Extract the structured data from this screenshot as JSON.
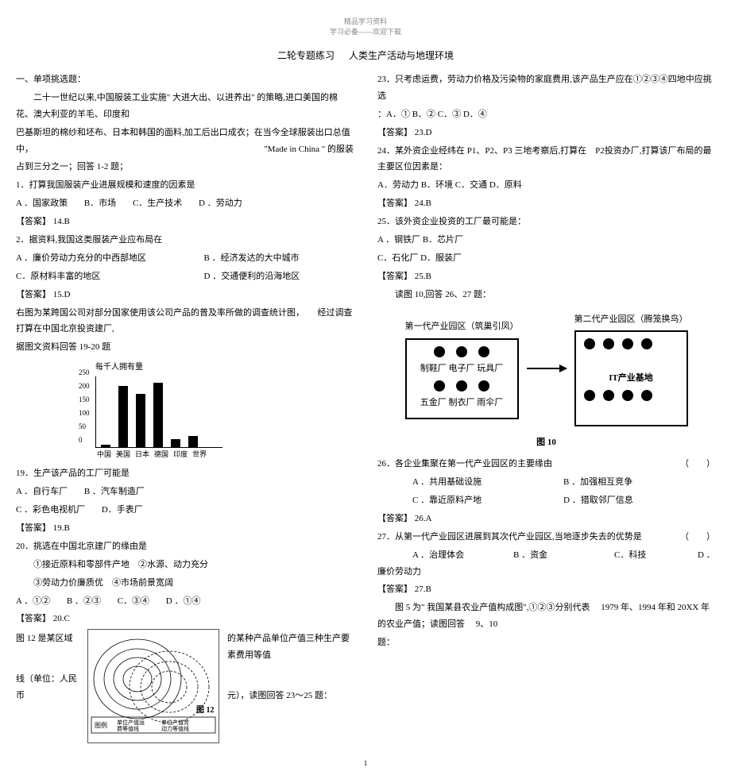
{
  "header": {
    "top": "精品学习资料",
    "sub": "学习必备------欢迎下载"
  },
  "title": {
    "left": "二轮专题练习",
    "right": "人类生产活动与地理环境"
  },
  "left": {
    "section": "一、单项挑选题：",
    "intro1": "二十一世纪以来,中国服装工业实施\" 大进大出、以进养出\" 的策略,进口美国的棉花、澳大利亚的羊毛、印度和",
    "intro2_a": "巴基斯坦的棉纱和坯布、日本和韩国的面料,加工后出口成衣；在当今全球服装出口总值中，",
    "intro2_b": "\"Made in China \" 的服装",
    "intro3": "占到三分之一；回答 1-2 题；",
    "q1": "1．打算我国服装产业进展规模和速度的因素是",
    "q1_opts": {
      "a": "A ．国家政策",
      "b": "B．市场",
      "c": "C．生产技术",
      "d": "D ．劳动力"
    },
    "a1": "【答案】 14.B",
    "q2": "2．据资料,我国这类服装产业应布局在",
    "q2_a": "A ．廉价劳动力充分的中西部地区",
    "q2_b": "B ．经济发达的大中城市",
    "q2_c": "C．原材料丰富的地区",
    "q2_d": "D ．交通便利的沿海地区",
    "a2": "【答案】 15.D",
    "para_a": "右图为某跨国公司对部分国家使用该公司产品的普及率所做的调查统计图，",
    "para_b": "经过调查打算在中国北京投资建厂,",
    "para_c": "据图文资料回答 19-20 题",
    "chart": {
      "ylabel": "每千人拥有量",
      "yticks": [
        "0",
        "50",
        "100",
        "150",
        "200",
        "250"
      ],
      "xlabels": [
        "中国",
        "美国",
        "日本",
        "德国",
        "印度",
        "世界"
      ],
      "bars": [
        10,
        220,
        190,
        230,
        30,
        40
      ],
      "ymax": 250
    },
    "q19": "19．生产该产品的工厂可能是",
    "q19_ab": {
      "a": "A ．自行车厂",
      "b": "B ．汽车制造厂"
    },
    "q19_cd": {
      "c": "C ．彩色电视机厂",
      "d": "D．手表厂"
    },
    "a19": "【答案】 19.B",
    "q20": "20．挑选在中国北京建厂的缘由是",
    "q20_l1": "①接近原料和零部件产地　②水源、动力充分",
    "q20_l2": "③劳动力价廉质优　④市场前景宽阔",
    "q20_opts": {
      "a": "A ．①②",
      "b": "B ．②③",
      "c": "C．③④",
      "d": "D ．①④"
    },
    "a20": "【答案】 20.C",
    "q12_a": "图 12 是某区域",
    "q12_b": "的某种产品单位产值三种生产要素费用等值",
    "q12_c": "线（单位：人民币",
    "q12_d": "元），读图回答 23～25 题：",
    "map_legend": {
      "l1": "图例",
      "l2": "单位产值运\\n费等值线",
      "l3": "单位产值劳\\n动力等值线",
      "cap": "图 12"
    }
  },
  "right": {
    "q23": "23．只考虑运费，劳动力价格及污染物的家庭费用,该产品生产应在①②③④四地中应挑选",
    "q23_opts": "：A．① B．② C．③ D．④",
    "a23": "【答案】 23.D",
    "q24_a": "24．某外资企业经纬在 P1、P2、P3 三地考察后,打算在",
    "q24_b": "P2投资办厂,打算该厂布局的最主要区位因素是：",
    "q24_opts": "A．劳动力 B．环境 C．交通 D．原料",
    "a24": "【答案】 24.B",
    "q25": "25．该外资企业投资的工厂最可能是：",
    "q25_ab": "A ．钢铁厂 B．芯片厂",
    "q25_cd": "C．石化厂 D．服装厂",
    "a25": "【答案】 25.B",
    "fig10_intro": "读图 10,回答 26、27 题：",
    "park1_title": "第一代产业园区（筑巢引凤）",
    "park2_title": "第二代产业园区（腾笼换鸟）",
    "park1_row1": "制鞋厂 电子厂 玩具厂",
    "park1_row2": "五金厂 制衣厂 雨伞厂",
    "park2_label": "IT产业基地",
    "figcap": "图 10",
    "q26": "26．各企业集聚在第一代产业园区的主要缘由",
    "q26_ab": {
      "a": "A ．共用基础设施",
      "b": "B ．加强相互竞争"
    },
    "q26_cd": {
      "c": "C ．靠近原料产地",
      "d": "D ．猎取邻厂信息"
    },
    "a26": "【答案】 26.A",
    "q27": "27．从第一代产业园区进展到其次代产业园区,当地逐步失去的优势是",
    "q27_opts": {
      "a": "A ．治理体会",
      "b": "B ．资金",
      "c": "C．科技",
      "d": "D ．廉价劳动力"
    },
    "a27": "【答案】 27.B",
    "fig5_a": "图 5 为\" 我国某县农业产值构成图\",①②③分别代表",
    "fig5_b": "1979 年、1994 年和 20XX 年的农业产值；读图回答",
    "fig5_c": "9、10",
    "fig5_d": "题：",
    "paren": "（　　）"
  },
  "page_num": "1"
}
